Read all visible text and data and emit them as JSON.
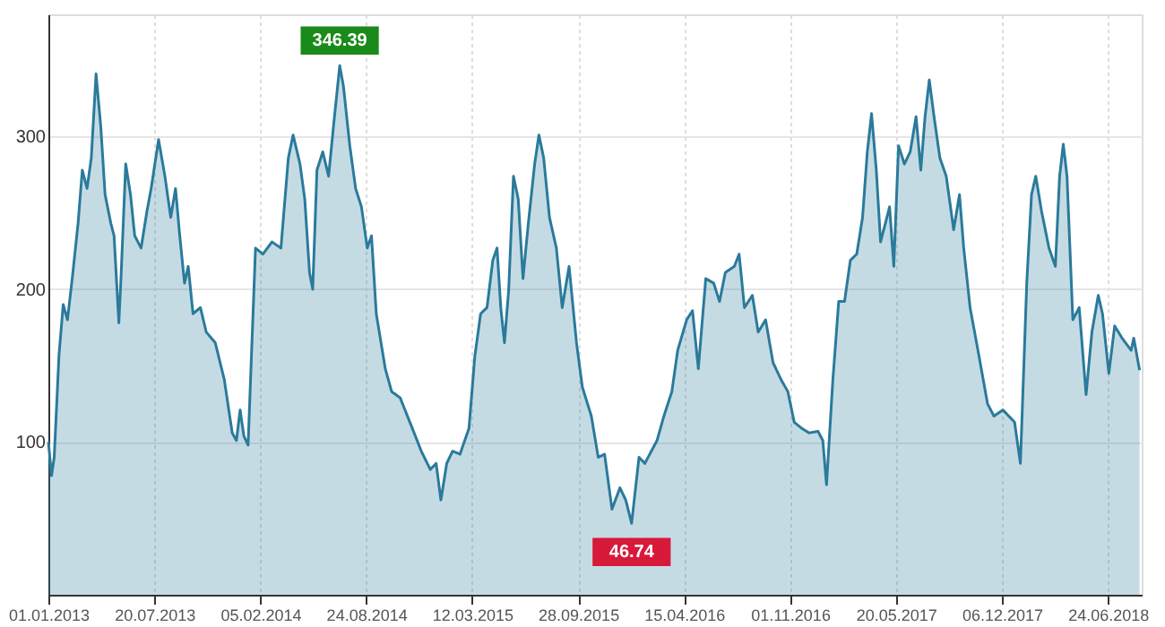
{
  "chart_data": {
    "type": "area",
    "xlim": [
      "2013-01-01",
      "2018-08-27"
    ],
    "ylim": [
      0,
      380
    ],
    "yticks": [
      100,
      200,
      300
    ],
    "grid": true,
    "xticks": [
      {
        "value": "2013-01-01",
        "label": "01.01.2013"
      },
      {
        "value": "2013-07-20",
        "label": "20.07.2013"
      },
      {
        "value": "2014-02-05",
        "label": "05.02.2014"
      },
      {
        "value": "2014-08-24",
        "label": "24.08.2014"
      },
      {
        "value": "2015-03-12",
        "label": "12.03.2015"
      },
      {
        "value": "2015-09-28",
        "label": "28.09.2015"
      },
      {
        "value": "2016-04-15",
        "label": "15.04.2016"
      },
      {
        "value": "2016-11-01",
        "label": "01.11.2016"
      },
      {
        "value": "2017-05-20",
        "label": "20.05.2017"
      },
      {
        "value": "2017-12-06",
        "label": "06.12.2017"
      },
      {
        "value": "2018-06-24",
        "label": "24.06.2018"
      }
    ],
    "annotations": [
      {
        "text": "346.39",
        "x": "2014-07-05",
        "y": 346.39
      },
      {
        "text": "46.74",
        "x": "2016-01-07",
        "y": 46.74
      }
    ],
    "series": [
      {
        "color": "#2a7a9b",
        "x": [
          "2013-01-01",
          "2013-01-07",
          "2013-01-12",
          "2013-01-21",
          "2013-01-29",
          "2013-02-06",
          "2013-02-15",
          "2013-02-26",
          "2013-03-06",
          "2013-03-15",
          "2013-03-23",
          "2013-04-01",
          "2013-04-10",
          "2013-04-18",
          "2013-04-29",
          "2013-05-05",
          "2013-05-14",
          "2013-05-18",
          "2013-05-27",
          "2013-06-05",
          "2013-06-13",
          "2013-06-25",
          "2013-07-06",
          "2013-07-14",
          "2013-07-28",
          "2013-08-09",
          "2013-08-20",
          "2013-08-29",
          "2013-09-06",
          "2013-09-15",
          "2013-09-22",
          "2013-10-01",
          "2013-10-15",
          "2013-10-26",
          "2013-11-12",
          "2013-11-29",
          "2013-12-14",
          "2013-12-22",
          "2013-12-29",
          "2014-01-05",
          "2014-01-13",
          "2014-01-27",
          "2014-02-10",
          "2014-02-27",
          "2014-03-16",
          "2014-03-30",
          "2014-04-08",
          "2014-04-21",
          "2014-04-30",
          "2014-05-09",
          "2014-05-15",
          "2014-05-23",
          "2014-06-03",
          "2014-06-14",
          "2014-06-23",
          "2014-07-05",
          "2014-07-12",
          "2014-07-24",
          "2014-08-04",
          "2014-08-15",
          "2014-08-26",
          "2014-09-03",
          "2014-09-12",
          "2014-09-29",
          "2014-10-11",
          "2014-10-27",
          "2014-11-19",
          "2014-12-06",
          "2014-12-23",
          "2015-01-03",
          "2015-01-12",
          "2015-01-23",
          "2015-02-03",
          "2015-02-17",
          "2015-03-06",
          "2015-03-17",
          "2015-03-28",
          "2015-04-09",
          "2015-04-20",
          "2015-04-28",
          "2015-05-05",
          "2015-05-12",
          "2015-05-20",
          "2015-05-29",
          "2015-06-07",
          "2015-06-16",
          "2015-06-26",
          "2015-07-08",
          "2015-07-16",
          "2015-07-25",
          "2015-08-05",
          "2015-08-18",
          "2015-08-29",
          "2015-09-11",
          "2015-09-25",
          "2015-10-06",
          "2015-10-23",
          "2015-11-05",
          "2015-11-17",
          "2015-12-01",
          "2015-12-16",
          "2015-12-27",
          "2016-01-07",
          "2016-01-21",
          "2016-02-01",
          "2016-02-24",
          "2016-03-08",
          "2016-03-23",
          "2016-04-03",
          "2016-04-20",
          "2016-05-01",
          "2016-05-12",
          "2016-05-26",
          "2016-06-10",
          "2016-06-21",
          "2016-07-02",
          "2016-07-19",
          "2016-07-28",
          "2016-08-07",
          "2016-08-22",
          "2016-09-02",
          "2016-09-16",
          "2016-09-30",
          "2016-10-15",
          "2016-10-28",
          "2016-11-09",
          "2016-11-23",
          "2016-12-07",
          "2016-12-24",
          "2017-01-02",
          "2017-01-09",
          "2017-01-21",
          "2017-02-01",
          "2017-02-12",
          "2017-02-23",
          "2017-03-07",
          "2017-03-18",
          "2017-03-27",
          "2017-04-04",
          "2017-04-13",
          "2017-04-21",
          "2017-04-30",
          "2017-05-08",
          "2017-05-16",
          "2017-05-25",
          "2017-06-05",
          "2017-06-16",
          "2017-06-27",
          "2017-07-06",
          "2017-07-14",
          "2017-07-22",
          "2017-07-31",
          "2017-08-11",
          "2017-08-23",
          "2017-09-06",
          "2017-09-17",
          "2017-09-25",
          "2017-10-07",
          "2017-10-24",
          "2017-11-09",
          "2017-11-21",
          "2017-12-08",
          "2017-12-30",
          "2018-01-10",
          "2018-01-22",
          "2018-01-31",
          "2018-02-08",
          "2018-02-19",
          "2018-03-05",
          "2018-03-17",
          "2018-03-25",
          "2018-04-01",
          "2018-04-08",
          "2018-04-19",
          "2018-05-01",
          "2018-05-14",
          "2018-05-25",
          "2018-06-06",
          "2018-06-14",
          "2018-06-26",
          "2018-07-07",
          "2018-07-21",
          "2018-08-07",
          "2018-08-12",
          "2018-08-23"
        ],
        "values": [
          100,
          78,
          90,
          157,
          190,
          180,
          207,
          243,
          278,
          266,
          286,
          341,
          306,
          262,
          243,
          235,
          178,
          207,
          282,
          262,
          235,
          227,
          251,
          266,
          298,
          274,
          247,
          266,
          235,
          204,
          215,
          184,
          188,
          172,
          165,
          141,
          106,
          101,
          121,
          104,
          98,
          227,
          223,
          231,
          227,
          286,
          301,
          282,
          259,
          211,
          200,
          278,
          290,
          274,
          306,
          346.39,
          333,
          294,
          266,
          254,
          227,
          235,
          184,
          148,
          133,
          129,
          109,
          94,
          82,
          86,
          62,
          86,
          94,
          92,
          109,
          156,
          184,
          188,
          219,
          227,
          188,
          165,
          200,
          274,
          259,
          207,
          243,
          282,
          301,
          286,
          247,
          227,
          188,
          215,
          165,
          136,
          117,
          90,
          92,
          56,
          70,
          62,
          46.74,
          90,
          86,
          101,
          117,
          133,
          160,
          180,
          186,
          148,
          207,
          204,
          192,
          211,
          215,
          223,
          188,
          196,
          172,
          180,
          152,
          141,
          133,
          113,
          109,
          106,
          107,
          101,
          72,
          141,
          192,
          192,
          219,
          223,
          247,
          290,
          315,
          278,
          231,
          243,
          254,
          215,
          294,
          282,
          290,
          313,
          278,
          313,
          337,
          313,
          286,
          274,
          239,
          262,
          227,
          188,
          156,
          125,
          117,
          121,
          113,
          86,
          204,
          262,
          274,
          251,
          227,
          215,
          274,
          295,
          274,
          180,
          188,
          131,
          172,
          196,
          184,
          145,
          176,
          168,
          160,
          168,
          147
        ]
      }
    ]
  }
}
